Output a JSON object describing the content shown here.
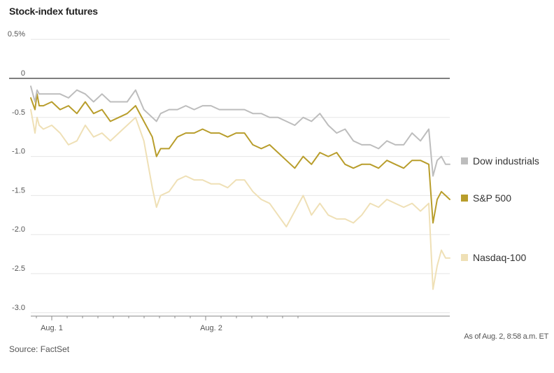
{
  "title": "Stock-index futures",
  "source": "Source: FactSet",
  "as_of": "As of Aug. 2, 8:58 a.m. ET",
  "chart_data": {
    "type": "line",
    "title": "Stock-index futures",
    "xlabel": "",
    "ylabel": "",
    "x_ticks": [
      "Aug. 1",
      "Aug. 2"
    ],
    "y_ticks": [
      {
        "value": 0.5,
        "label": "0.5%"
      },
      {
        "value": 0,
        "label": "0"
      },
      {
        "value": -0.5,
        "label": "-0.5"
      },
      {
        "value": -1.0,
        "label": "-1.0"
      },
      {
        "value": -1.5,
        "label": "-1.5"
      },
      {
        "value": -2.0,
        "label": "-2.0"
      },
      {
        "value": -2.5,
        "label": "-2.5"
      },
      {
        "value": -3.0,
        "label": "-3.0"
      }
    ],
    "ylim": [
      -3.0,
      0.5
    ],
    "xlim": [
      0,
      100
    ],
    "grid": true,
    "legend_position": "right",
    "series": [
      {
        "name": "Dow industrials",
        "color": "#bdbdbd",
        "x": [
          0,
          1,
          1.5,
          2,
          3,
          5,
          7,
          9,
          11,
          13,
          15,
          17,
          19,
          21,
          23,
          25,
          27,
          29,
          30,
          31,
          33,
          35,
          37,
          39,
          41,
          43,
          45,
          47,
          49,
          51,
          53,
          55,
          57,
          59,
          61,
          63,
          65,
          67,
          69,
          71,
          73,
          75,
          77,
          79,
          81,
          83,
          85,
          87,
          89,
          91,
          93,
          95,
          96,
          97,
          98,
          99,
          100
        ],
        "y": [
          -0.1,
          -0.3,
          -0.15,
          -0.2,
          -0.2,
          -0.2,
          -0.2,
          -0.25,
          -0.15,
          -0.2,
          -0.3,
          -0.2,
          -0.3,
          -0.3,
          -0.3,
          -0.15,
          -0.4,
          -0.5,
          -0.55,
          -0.45,
          -0.4,
          -0.4,
          -0.35,
          -0.4,
          -0.35,
          -0.35,
          -0.4,
          -0.4,
          -0.4,
          -0.4,
          -0.45,
          -0.45,
          -0.5,
          -0.5,
          -0.55,
          -0.6,
          -0.5,
          -0.55,
          -0.45,
          -0.6,
          -0.7,
          -0.65,
          -0.8,
          -0.85,
          -0.85,
          -0.9,
          -0.8,
          -0.85,
          -0.85,
          -0.7,
          -0.8,
          -0.65,
          -1.25,
          -1.05,
          -1.0,
          -1.1,
          -1.1
        ]
      },
      {
        "name": "S&P 500",
        "color": "#b89d2b",
        "x": [
          0,
          1,
          1.5,
          2,
          3,
          5,
          7,
          9,
          11,
          13,
          15,
          17,
          19,
          21,
          23,
          25,
          27,
          29,
          30,
          31,
          33,
          35,
          37,
          39,
          41,
          43,
          45,
          47,
          49,
          51,
          53,
          55,
          57,
          59,
          61,
          63,
          65,
          67,
          69,
          71,
          73,
          75,
          77,
          79,
          81,
          83,
          85,
          87,
          89,
          91,
          93,
          95,
          96,
          97,
          98,
          99,
          100
        ],
        "y": [
          -0.25,
          -0.4,
          -0.2,
          -0.35,
          -0.35,
          -0.3,
          -0.4,
          -0.35,
          -0.45,
          -0.3,
          -0.45,
          -0.4,
          -0.55,
          -0.5,
          -0.45,
          -0.35,
          -0.55,
          -0.75,
          -1.0,
          -0.9,
          -0.9,
          -0.75,
          -0.7,
          -0.7,
          -0.65,
          -0.7,
          -0.7,
          -0.75,
          -0.7,
          -0.7,
          -0.85,
          -0.9,
          -0.85,
          -0.95,
          -1.05,
          -1.15,
          -1.0,
          -1.1,
          -0.95,
          -1.0,
          -0.95,
          -1.1,
          -1.15,
          -1.1,
          -1.1,
          -1.15,
          -1.05,
          -1.1,
          -1.15,
          -1.05,
          -1.05,
          -1.1,
          -1.85,
          -1.55,
          -1.45,
          -1.5,
          -1.55
        ]
      },
      {
        "name": "Nasdaq-100",
        "color": "#efe0b6",
        "x": [
          0,
          1,
          1.5,
          2,
          3,
          5,
          7,
          9,
          11,
          13,
          15,
          17,
          19,
          21,
          23,
          25,
          27,
          29,
          30,
          31,
          33,
          35,
          37,
          39,
          41,
          43,
          45,
          47,
          49,
          51,
          53,
          55,
          57,
          59,
          61,
          63,
          65,
          67,
          69,
          71,
          73,
          75,
          77,
          79,
          81,
          83,
          85,
          87,
          89,
          91,
          93,
          95,
          96,
          97,
          98,
          99,
          100
        ],
        "y": [
          -0.4,
          -0.7,
          -0.5,
          -0.6,
          -0.65,
          -0.6,
          -0.7,
          -0.85,
          -0.8,
          -0.6,
          -0.75,
          -0.7,
          -0.8,
          -0.7,
          -0.6,
          -0.5,
          -0.8,
          -1.4,
          -1.65,
          -1.5,
          -1.45,
          -1.3,
          -1.25,
          -1.3,
          -1.3,
          -1.35,
          -1.35,
          -1.4,
          -1.3,
          -1.3,
          -1.45,
          -1.55,
          -1.6,
          -1.75,
          -1.9,
          -1.7,
          -1.5,
          -1.75,
          -1.6,
          -1.75,
          -1.8,
          -1.8,
          -1.85,
          -1.75,
          -1.6,
          -1.65,
          -1.55,
          -1.6,
          -1.65,
          -1.6,
          -1.7,
          -1.6,
          -2.7,
          -2.4,
          -2.2,
          -2.3,
          -2.3
        ]
      }
    ]
  }
}
